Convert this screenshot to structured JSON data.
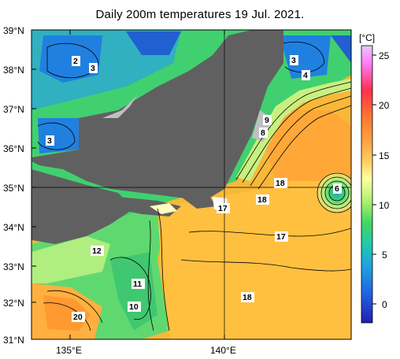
{
  "title": "Daily 200m temperatures 19 Jul. 2021.",
  "colorbar": {
    "unit": "[°C]",
    "ticks": [
      "25",
      "20",
      "15",
      "10",
      "5",
      "0"
    ],
    "colors": [
      "#d8b0f0",
      "#ff88ff",
      "#ff4060",
      "#ff8030",
      "#ffb040",
      "#ffe080",
      "#ffffb0",
      "#c0f080",
      "#60e060",
      "#20d0b0",
      "#20a0e0",
      "#2060e0",
      "#2020c0"
    ]
  },
  "axes": {
    "lat_labels": [
      "39°N",
      "38°N",
      "37°N",
      "36°N",
      "35°N",
      "34°N",
      "33°N",
      "32°N",
      "31°N"
    ],
    "lon_labels": [
      "135°E",
      "140°E"
    ]
  },
  "contour_labels": [
    {
      "id": "l2",
      "text": "2"
    },
    {
      "id": "l3a",
      "text": "3"
    },
    {
      "id": "l3b",
      "text": "3"
    },
    {
      "id": "l3c",
      "text": "3"
    },
    {
      "id": "l4",
      "text": "4"
    },
    {
      "id": "l9",
      "text": "9"
    },
    {
      "id": "l8",
      "text": "8"
    },
    {
      "id": "l6",
      "text": "6"
    },
    {
      "id": "l18a",
      "text": "18"
    },
    {
      "id": "l18b",
      "text": "18"
    },
    {
      "id": "l17a",
      "text": "17"
    },
    {
      "id": "l17b",
      "text": "17"
    },
    {
      "id": "l12",
      "text": "12"
    },
    {
      "id": "l11",
      "text": "11"
    },
    {
      "id": "l10",
      "text": "10"
    },
    {
      "id": "l20",
      "text": "20"
    },
    {
      "id": "l18c",
      "text": "18"
    }
  ]
}
